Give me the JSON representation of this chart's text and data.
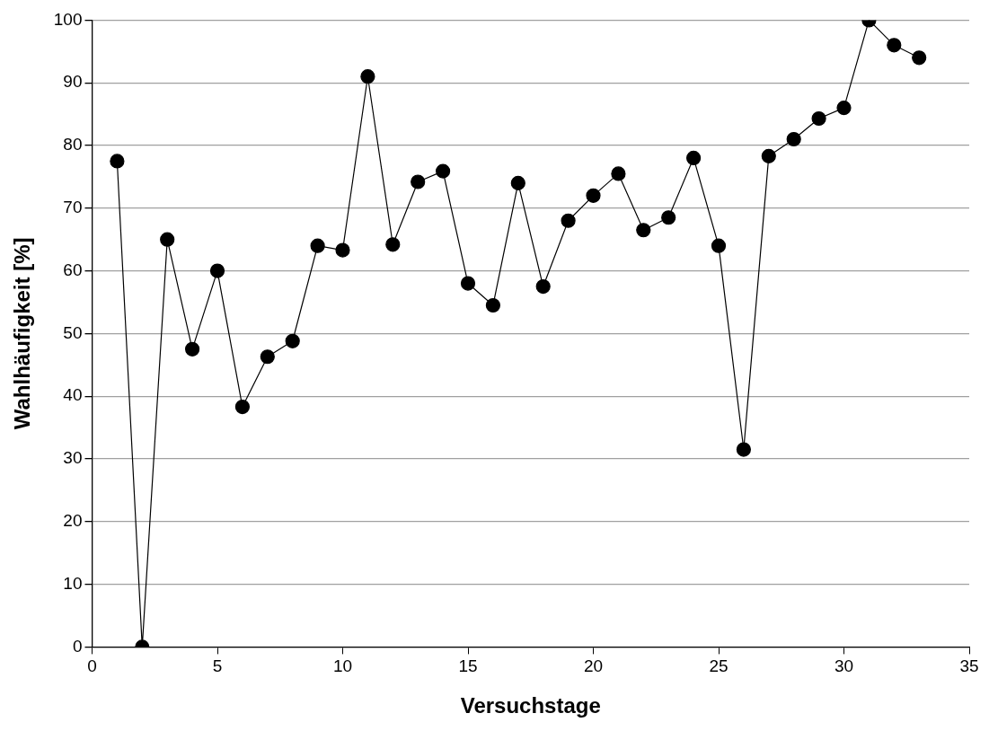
{
  "chart_data": {
    "type": "line",
    "xlabel": "Versuchstage",
    "ylabel": "Wahlhäufigkeit [%]",
    "x": [
      1,
      2,
      3,
      4,
      5,
      6,
      7,
      8,
      9,
      10,
      11,
      12,
      13,
      14,
      15,
      16,
      17,
      18,
      19,
      20,
      21,
      22,
      23,
      24,
      25,
      26,
      27,
      28,
      29,
      30,
      31,
      32,
      33
    ],
    "series": [
      {
        "color": "#000000",
        "values": [
          77.5,
          0,
          65,
          47.5,
          60,
          38.3,
          46.3,
          48.8,
          64,
          63.3,
          91,
          64.2,
          74.2,
          75.9,
          58,
          54.5,
          74,
          57.5,
          68,
          72,
          75.5,
          66.5,
          68.5,
          78,
          64,
          31.5,
          78.3,
          81,
          84.3,
          86,
          100,
          96,
          94
        ]
      }
    ],
    "xlim": [
      0,
      35
    ],
    "xticks": [
      0,
      5,
      10,
      15,
      20,
      25,
      30,
      35
    ],
    "ylim": [
      0,
      100
    ],
    "yticks": [
      0,
      10,
      20,
      30,
      40,
      50,
      60,
      70,
      80,
      90,
      100
    ],
    "grid": "y",
    "legend": false,
    "marker": "circle",
    "line_style": "solid"
  }
}
